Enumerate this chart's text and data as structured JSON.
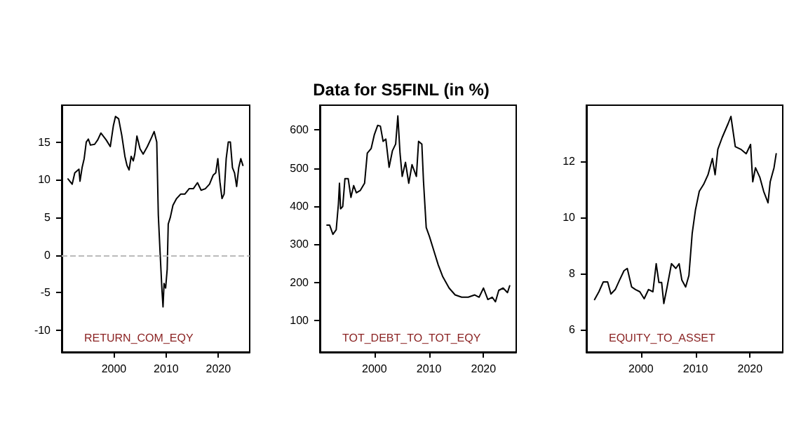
{
  "chart_data": [
    {
      "type": "line",
      "annotations": [
        "RETURN_COM_EQY"
      ],
      "x": [
        1991.2,
        1992,
        1992.5,
        1993.3,
        1993.5,
        1993.9,
        1994.3,
        1994.7,
        1995.1,
        1995.5,
        1996.3,
        1996.9,
        1997.5,
        1998.5,
        1999.3,
        1999.9,
        2000.3,
        2000.9,
        2001.5,
        2002.1,
        2002.5,
        2002.9,
        2003.3,
        2003.7,
        2004,
        2004.4,
        2005,
        2005.6,
        2006.4,
        2007.2,
        2007.7,
        2008.2,
        2008.5,
        2008.8,
        2009.2,
        2009.4,
        2009.6,
        2009.9,
        2010.2,
        2010.4,
        2010.8,
        2011.3,
        2012,
        2012.8,
        2013.6,
        2014.4,
        2015.2,
        2016,
        2016.7,
        2017.5,
        2018.3,
        2019,
        2019.5,
        2019.9,
        2020.3,
        2020.7,
        2021.1,
        2021.5,
        2021.9,
        2022.3,
        2022.7,
        2023.1,
        2023.5,
        2023.9,
        2024.3,
        2024.7
      ],
      "series": [
        {
          "color": "#000000",
          "values": [
            10.1,
            9.4,
            10.9,
            11.4,
            9.8,
            11.6,
            12.8,
            15,
            15.4,
            14.6,
            14.7,
            15.3,
            16.2,
            15.3,
            14.4,
            17.2,
            18.4,
            18.1,
            15.9,
            13.1,
            11.9,
            11.3,
            13.1,
            12.5,
            13.4,
            15.8,
            14.1,
            13.4,
            14.4,
            15.6,
            16.4,
            15,
            5.3,
            0.9,
            -4.7,
            -6.9,
            -3.8,
            -4.4,
            -1.9,
            4.1,
            5,
            6.6,
            7.5,
            8.1,
            8.1,
            8.8,
            8.8,
            9.6,
            8.6,
            8.8,
            9.4,
            10.6,
            10.9,
            12.8,
            9.7,
            7.5,
            8.1,
            12.8,
            15,
            15,
            11.6,
            10.9,
            9.1,
            11.6,
            12.8,
            11.9
          ]
        }
      ],
      "xlim": [
        1990,
        2026
      ],
      "xticks": [
        2000,
        2010,
        2020
      ],
      "ylim": [
        -12.9,
        19.9
      ],
      "yticks": [
        -10,
        -5,
        0,
        5,
        10,
        15
      ],
      "ref_lines": [
        {
          "axis": "y",
          "value": 0,
          "color": "#bbbbbb",
          "line_style": "dashed"
        }
      ]
    },
    {
      "type": "line",
      "title": "Data for S5FINL (in %)",
      "annotations": [
        "TOT_DEBT_TO_TOT_EQY"
      ],
      "x": [
        1991.3,
        1991.8,
        1992.4,
        1993,
        1993.4,
        1993.6,
        1993.8,
        1994.2,
        1994.6,
        1995.2,
        1995.7,
        1996.2,
        1996.7,
        1997.4,
        1998.2,
        1998.7,
        1999.4,
        2000,
        2000.6,
        2001.1,
        2001.6,
        2002.1,
        2002.7,
        2003.3,
        2003.9,
        2004.3,
        2004.7,
        2005.1,
        2005.7,
        2006.3,
        2006.9,
        2007.7,
        2008.1,
        2008.7,
        2009,
        2009.5,
        2010.1,
        2010.9,
        2011.7,
        2012.5,
        2013.7,
        2014.8,
        2016,
        2017.2,
        2018.4,
        2019.2,
        2020,
        2020.8,
        2021.6,
        2022.2,
        2022.8,
        2023.6,
        2024.4,
        2024.8
      ],
      "series": [
        {
          "color": "#000000",
          "values": [
            350,
            350,
            326,
            338,
            405,
            460,
            393,
            399,
            472,
            472,
            423,
            454,
            435,
            441,
            460,
            539,
            551,
            588,
            612,
            610,
            570,
            576,
            502,
            545,
            563,
            637,
            539,
            478,
            515,
            460,
            509,
            478,
            570,
            563,
            466,
            344,
            320,
            283,
            246,
            216,
            185,
            167,
            161,
            161,
            167,
            161,
            185,
            155,
            161,
            149,
            179,
            185,
            173,
            191
          ]
        }
      ],
      "xlim": [
        1990,
        2026
      ],
      "xticks": [
        2000,
        2010,
        2020
      ],
      "ylim": [
        17,
        665
      ],
      "yticks": [
        100,
        200,
        300,
        400,
        500,
        600
      ]
    },
    {
      "type": "line",
      "annotations": [
        "EQUITY_TO_ASSET"
      ],
      "x": [
        1991.5,
        1992.3,
        1993.1,
        1993.9,
        1994.5,
        1995.3,
        1996.1,
        1996.9,
        1997.5,
        1998.3,
        1999,
        1999.8,
        2000.6,
        2001.4,
        2002.2,
        2002.8,
        2003.3,
        2003.8,
        2004.2,
        2004.8,
        2005.6,
        2006.4,
        2007,
        2007.5,
        2008.2,
        2008.8,
        2009.4,
        2010,
        2010.7,
        2011.5,
        2012.3,
        2013.1,
        2013.6,
        2014.1,
        2014.9,
        2016,
        2016.5,
        2017.3,
        2018.3,
        2019.3,
        2020.1,
        2020.5,
        2021,
        2021.8,
        2022.5,
        2023.3,
        2023.7,
        2024.4,
        2024.8
      ],
      "series": [
        {
          "color": "#000000",
          "values": [
            7.07,
            7.35,
            7.7,
            7.7,
            7.27,
            7.43,
            7.77,
            8.1,
            8.18,
            7.52,
            7.43,
            7.35,
            7.1,
            7.43,
            7.35,
            8.35,
            7.68,
            7.68,
            6.93,
            7.52,
            8.35,
            8.18,
            8.35,
            7.77,
            7.52,
            7.93,
            9.43,
            10.27,
            10.93,
            11.18,
            11.52,
            12.1,
            11.52,
            12.43,
            12.85,
            13.35,
            13.6,
            12.52,
            12.43,
            12.27,
            12.6,
            11.27,
            11.77,
            11.43,
            10.93,
            10.52,
            11.27,
            11.77,
            12.27
          ]
        }
      ],
      "xlim": [
        1990,
        2026
      ],
      "xticks": [
        2000,
        2010,
        2020
      ],
      "ylim": [
        5.2,
        14
      ],
      "yticks": [
        6,
        8,
        10,
        12
      ]
    }
  ]
}
